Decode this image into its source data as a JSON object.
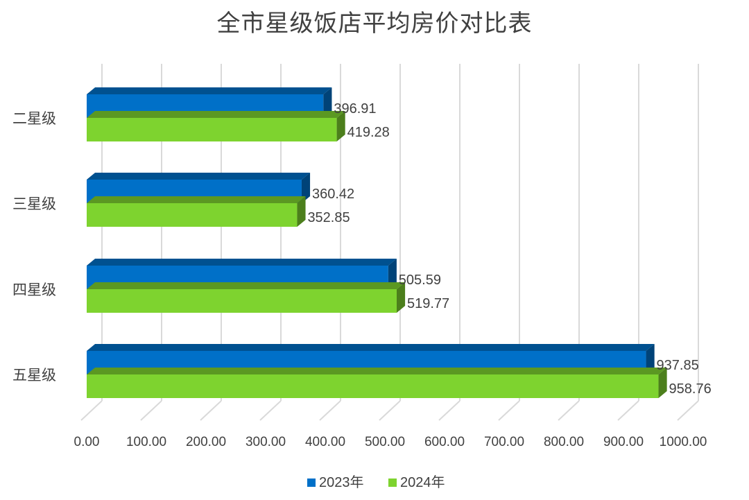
{
  "chart_data": {
    "type": "bar",
    "orientation": "horizontal",
    "three_d": true,
    "title": "全市星级饭店平均房价对比表",
    "categories": [
      "二星级",
      "三星级",
      "四星级",
      "五星级"
    ],
    "series": [
      {
        "name": "2023年",
        "values": [
          396.91,
          360.42,
          505.59,
          937.85
        ],
        "color": "#0070C8"
      },
      {
        "name": "2024年",
        "values": [
          419.28,
          352.85,
          519.77,
          958.76
        ],
        "color": "#7ED32F"
      }
    ],
    "data_labels": [
      [
        "396.91",
        "360.42",
        "505.59",
        "937.85"
      ],
      [
        "419.28",
        "352.85",
        "519.77",
        "958.76"
      ]
    ],
    "xlim": [
      0,
      1000
    ],
    "x_ticks": [
      0,
      100,
      200,
      300,
      400,
      500,
      600,
      700,
      800,
      900,
      1000
    ],
    "x_tick_labels": [
      "0.00",
      "100.00",
      "200.00",
      "300.00",
      "400.00",
      "500.00",
      "600.00",
      "700.00",
      "800.00",
      "900.00",
      "1000.00"
    ],
    "grid": true,
    "legend_position": "bottom"
  }
}
